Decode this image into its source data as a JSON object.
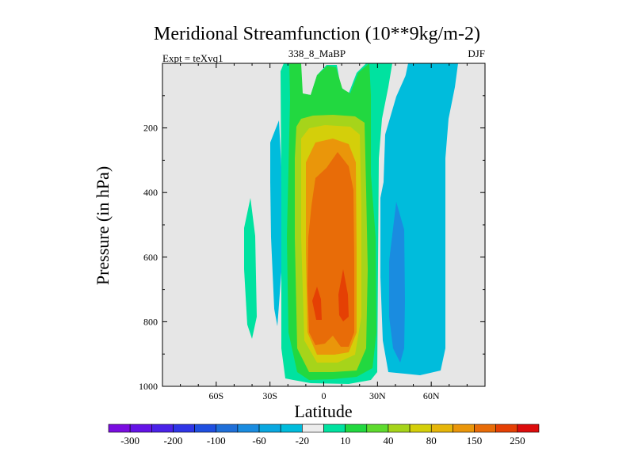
{
  "chart_data": {
    "type": "contour",
    "title": "Meridional Streamfunction (10**9kg/m-2)",
    "subtitle_left": "Expt = teXvq1",
    "subtitle_center": "338_8_MaBP",
    "subtitle_right": "DJF",
    "xlabel": "Latitude",
    "ylabel": "Pressure (in hPa)",
    "xlim": [
      -90,
      90
    ],
    "ylim": [
      1000,
      0
    ],
    "x_ticks": [
      {
        "value": -60,
        "label": "60S"
      },
      {
        "value": -30,
        "label": "30S"
      },
      {
        "value": 0,
        "label": "0"
      },
      {
        "value": 30,
        "label": "30N"
      },
      {
        "value": 60,
        "label": "60N"
      }
    ],
    "y_ticks": [
      {
        "value": 200,
        "label": "200"
      },
      {
        "value": 400,
        "label": "400"
      },
      {
        "value": 600,
        "label": "600"
      },
      {
        "value": 800,
        "label": "800"
      },
      {
        "value": 1000,
        "label": "1000"
      }
    ],
    "colorbar": {
      "colors": [
        "#7a0de0",
        "#6413e6",
        "#4a22e8",
        "#2f35e6",
        "#1f4fe0",
        "#1f6fd8",
        "#1a8ce0",
        "#0aa8e0",
        "#00bcdc",
        "#ececec",
        "#00e2a0",
        "#22d840",
        "#5edb2e",
        "#a6d41a",
        "#d4cf0a",
        "#e6b60a",
        "#ea960a",
        "#e86c08",
        "#e54004",
        "#dc0c0c"
      ],
      "tick_labels": [
        "-300",
        "-200",
        "-100",
        "-60",
        "-20",
        "10",
        "40",
        "80",
        "150",
        "250"
      ]
    },
    "cells": [
      {
        "name": "tropical-cell-positive",
        "level": "150 to 250",
        "lat_range": [
          -12,
          13
        ],
        "p_range": [
          265,
          860
        ],
        "max_level": "250",
        "color": "#e86c08"
      },
      {
        "name": "tropical-cell-core-left",
        "level": ">250",
        "lat_range": [
          -6,
          -3
        ],
        "p_range": [
          700,
          790
        ],
        "color": "#e54004"
      },
      {
        "name": "tropical-cell-core-right",
        "level": ">250",
        "lat_range": [
          8,
          12
        ],
        "p_range": [
          640,
          790
        ],
        "color": "#e54004"
      },
      {
        "name": "nh-cell-negative",
        "level": "-20 to -60",
        "lat_range": [
          30,
          75
        ],
        "p_range": [
          0,
          950
        ],
        "color": "#1a8ce0"
      },
      {
        "name": "sh-secondary-negative",
        "level": "-20",
        "lat_range": [
          -30,
          -26
        ],
        "p_range": [
          180,
          810
        ],
        "color": "#00bcdc"
      },
      {
        "name": "sh-outer-positive",
        "level": "10",
        "lat_range": [
          -44,
          -38
        ],
        "p_range": [
          420,
          850
        ],
        "color": "#00e2a0"
      }
    ]
  }
}
